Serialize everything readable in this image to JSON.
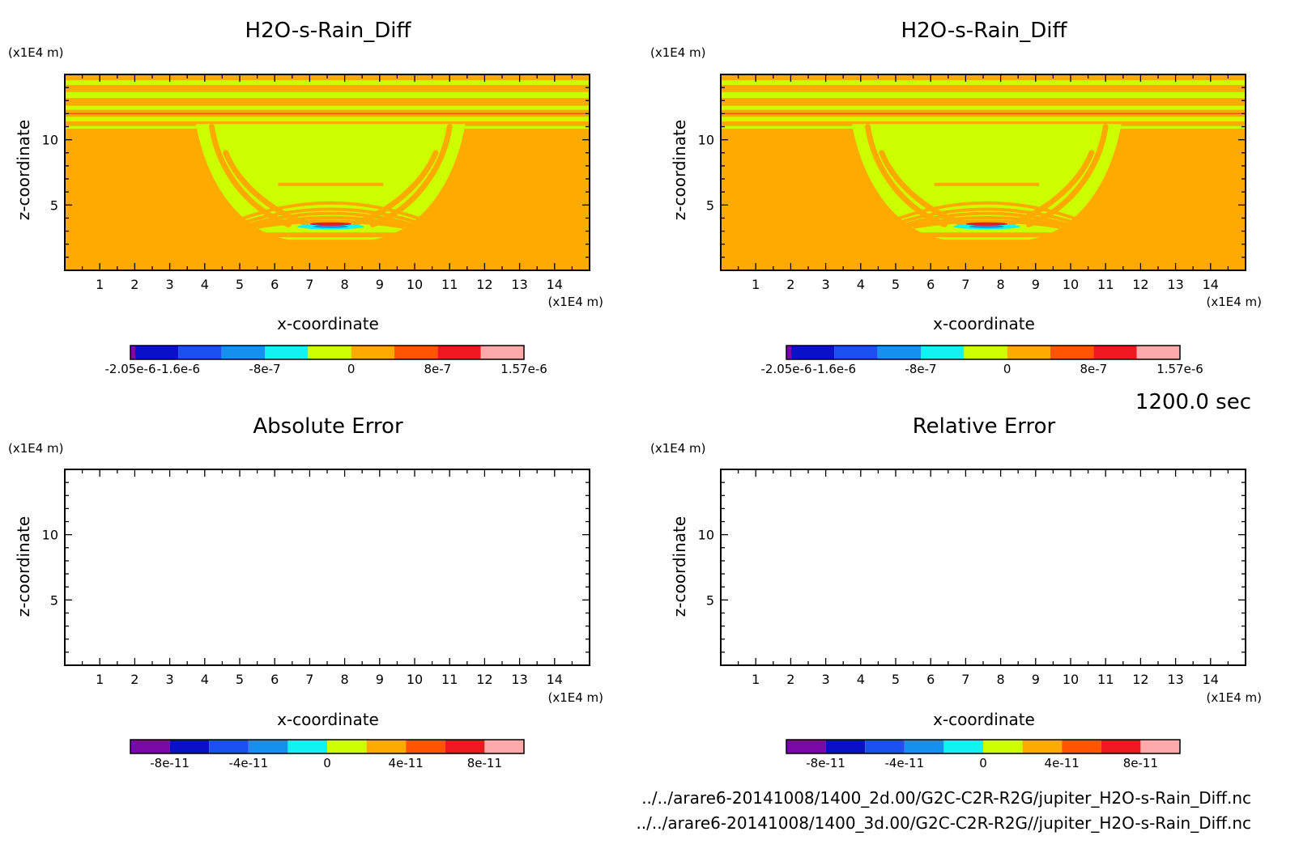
{
  "chart_data": [
    {
      "type": "heatmap",
      "title": "H2O-s-Rain_Diff",
      "xlabel": "x-coordinate",
      "ylabel": "z-coordinate",
      "x_unit": "(x1E4 m)",
      "y_unit": "(x1E4 m)",
      "xlim": [
        0,
        15
      ],
      "ylim": [
        0,
        15
      ],
      "x_ticks": [
        "1",
        "2",
        "3",
        "4",
        "5",
        "6",
        "7",
        "8",
        "9",
        "10",
        "11",
        "12",
        "13",
        "14"
      ],
      "y_ticks": [
        "5",
        "10"
      ],
      "field": "filled",
      "colorbar": {
        "labels": [
          "-2.05e-6",
          "-1.6e-6",
          "-8e-7",
          "0",
          "8e-7",
          "1.57e-6"
        ],
        "colors": [
          "#7a0aa8",
          "#0a10c8",
          "#1a50f0",
          "#1690ee",
          "#12f2f2",
          "#ccff00",
          "#ffaa00",
          "#ff5500",
          "#f01820",
          "#ffaaaa"
        ],
        "thin_first": true
      }
    },
    {
      "type": "heatmap",
      "title": "H2O-s-Rain_Diff",
      "xlabel": "x-coordinate",
      "ylabel": "z-coordinate",
      "x_unit": "(x1E4 m)",
      "y_unit": "(x1E4 m)",
      "xlim": [
        0,
        15
      ],
      "ylim": [
        0,
        15
      ],
      "x_ticks": [
        "1",
        "2",
        "3",
        "4",
        "5",
        "6",
        "7",
        "8",
        "9",
        "10",
        "11",
        "12",
        "13",
        "14"
      ],
      "y_ticks": [
        "5",
        "10"
      ],
      "field": "filled",
      "colorbar": {
        "labels": [
          "-2.05e-6",
          "-1.6e-6",
          "-8e-7",
          "0",
          "8e-7",
          "1.57e-6"
        ],
        "colors": [
          "#7a0aa8",
          "#0a10c8",
          "#1a50f0",
          "#1690ee",
          "#12f2f2",
          "#ccff00",
          "#ffaa00",
          "#ff5500",
          "#f01820",
          "#ffaaaa"
        ],
        "thin_first": true
      }
    },
    {
      "type": "heatmap",
      "title": "Absolute Error",
      "xlabel": "x-coordinate",
      "ylabel": "z-coordinate",
      "x_unit": "(x1E4 m)",
      "y_unit": "(x1E4 m)",
      "xlim": [
        0,
        15
      ],
      "ylim": [
        0,
        15
      ],
      "x_ticks": [
        "1",
        "2",
        "3",
        "4",
        "5",
        "6",
        "7",
        "8",
        "9",
        "10",
        "11",
        "12",
        "13",
        "14"
      ],
      "y_ticks": [
        "5",
        "10"
      ],
      "field": "empty",
      "colorbar": {
        "labels": [
          "-8e-11",
          "-4e-11",
          "0",
          "4e-11",
          "8e-11"
        ],
        "colors": [
          "#7a0aa8",
          "#0a10c8",
          "#1a50f0",
          "#1690ee",
          "#12f2f2",
          "#ccff00",
          "#ffaa00",
          "#ff5500",
          "#f01820",
          "#ffaaaa"
        ],
        "thin_first": false
      }
    },
    {
      "type": "heatmap",
      "title": "Relative Error",
      "xlabel": "x-coordinate",
      "ylabel": "z-coordinate",
      "x_unit": "(x1E4 m)",
      "y_unit": "(x1E4 m)",
      "xlim": [
        0,
        15
      ],
      "ylim": [
        0,
        15
      ],
      "x_ticks": [
        "1",
        "2",
        "3",
        "4",
        "5",
        "6",
        "7",
        "8",
        "9",
        "10",
        "11",
        "12",
        "13",
        "14"
      ],
      "y_ticks": [
        "5",
        "10"
      ],
      "field": "empty",
      "colorbar": {
        "labels": [
          "-8e-11",
          "-4e-11",
          "0",
          "4e-11",
          "8e-11"
        ],
        "colors": [
          "#7a0aa8",
          "#0a10c8",
          "#1a50f0",
          "#1690ee",
          "#12f2f2",
          "#ccff00",
          "#ffaa00",
          "#ff5500",
          "#f01820",
          "#ffaaaa"
        ],
        "thin_first": false
      }
    }
  ],
  "time_label": "1200.0 sec",
  "footer": {
    "line1": "../../arare6-20141008/1400_2d.00/G2C-C2R-R2G/jupiter_H2O-s-Rain_Diff.nc",
    "line2": "../../arare6-20141008/1400_3d.00/G2C-C2R-R2G//jupiter_H2O-s-Rain_Diff.nc"
  }
}
